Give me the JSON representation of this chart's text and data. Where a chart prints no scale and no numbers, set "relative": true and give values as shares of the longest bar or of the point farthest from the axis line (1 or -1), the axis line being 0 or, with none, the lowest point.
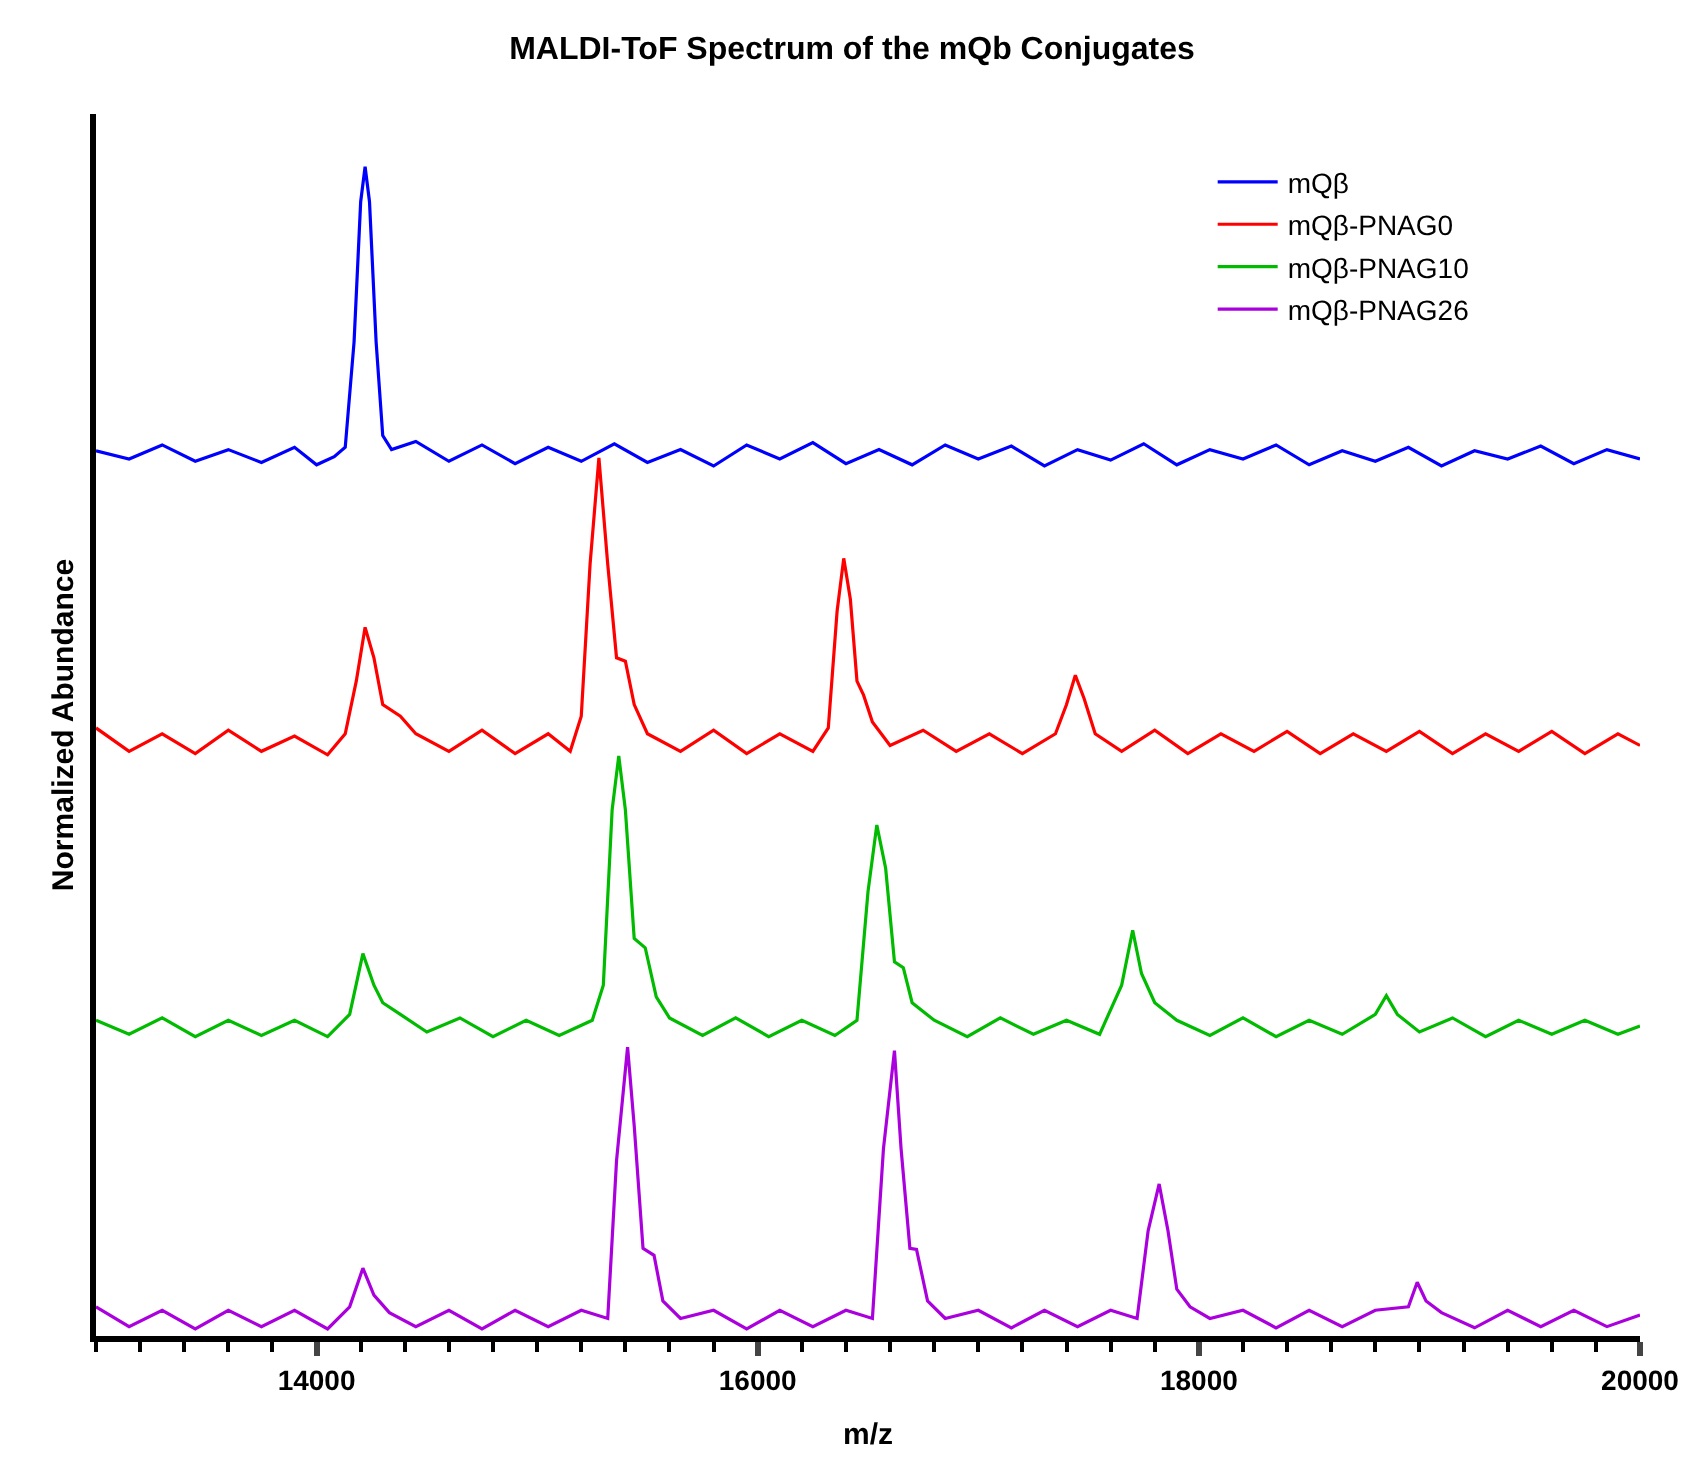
{
  "chart_data": {
    "type": "line",
    "title": "MALDI-ToF Spectrum of the mQb Conjugates",
    "xlabel": "m/z",
    "ylabel": "Normalized Abundance",
    "relative": true,
    "xlim": [
      13000,
      20000
    ],
    "xticks": [
      14000,
      16000,
      18000,
      20000
    ],
    "legend": "top right",
    "marker": "none",
    "line_style": "solid",
    "series": [
      {
        "name": "mQβ",
        "color": "#0000ff",
        "x": [
          13000,
          13150,
          13300,
          13450,
          13600,
          13750,
          13900,
          14000,
          14080,
          14130,
          14170,
          14200,
          14220,
          14240,
          14270,
          14300,
          14340,
          14450,
          14600,
          14750,
          14900,
          15050,
          15200,
          15350,
          15500,
          15650,
          15800,
          15950,
          16100,
          16250,
          16400,
          16550,
          16700,
          16850,
          17000,
          17150,
          17300,
          17450,
          17600,
          17750,
          17900,
          18050,
          18200,
          18350,
          18500,
          18650,
          18800,
          18950,
          19100,
          19250,
          19400,
          19550,
          19700,
          19850,
          20000
        ],
        "values": [
          0.757,
          0.75,
          0.762,
          0.748,
          0.758,
          0.747,
          0.76,
          0.745,
          0.752,
          0.76,
          0.85,
          0.97,
          1.0,
          0.97,
          0.85,
          0.77,
          0.758,
          0.765,
          0.748,
          0.762,
          0.746,
          0.76,
          0.748,
          0.763,
          0.747,
          0.758,
          0.744,
          0.762,
          0.75,
          0.764,
          0.746,
          0.758,
          0.745,
          0.762,
          0.75,
          0.761,
          0.744,
          0.758,
          0.749,
          0.763,
          0.745,
          0.758,
          0.75,
          0.762,
          0.745,
          0.757,
          0.748,
          0.76,
          0.744,
          0.757,
          0.75,
          0.761,
          0.746,
          0.758,
          0.75
        ]
      },
      {
        "name": "mQβ-PNAG0",
        "color": "#ff0000",
        "x": [
          13000,
          13150,
          13300,
          13450,
          13600,
          13750,
          13900,
          14050,
          14130,
          14180,
          14220,
          14260,
          14300,
          14380,
          14450,
          14600,
          14750,
          14900,
          15050,
          15150,
          15200,
          15240,
          15280,
          15320,
          15360,
          15400,
          15440,
          15500,
          15650,
          15800,
          15950,
          16100,
          16250,
          16320,
          16360,
          16390,
          16420,
          16450,
          16480,
          16520,
          16600,
          16750,
          16900,
          17050,
          17200,
          17350,
          17400,
          17440,
          17480,
          17530,
          17650,
          17800,
          17950,
          18100,
          18250,
          18400,
          18550,
          18700,
          18850,
          19000,
          19150,
          19300,
          19450,
          19600,
          19750,
          19900,
          20000
        ],
        "values": [
          0.52,
          0.5,
          0.515,
          0.498,
          0.518,
          0.5,
          0.513,
          0.497,
          0.515,
          0.56,
          0.606,
          0.58,
          0.54,
          0.53,
          0.515,
          0.5,
          0.518,
          0.498,
          0.515,
          0.5,
          0.53,
          0.66,
          0.751,
          0.66,
          0.58,
          0.577,
          0.54,
          0.515,
          0.5,
          0.518,
          0.498,
          0.515,
          0.5,
          0.52,
          0.62,
          0.665,
          0.63,
          0.56,
          0.548,
          0.525,
          0.505,
          0.518,
          0.5,
          0.515,
          0.498,
          0.515,
          0.54,
          0.565,
          0.545,
          0.515,
          0.5,
          0.518,
          0.498,
          0.515,
          0.5,
          0.517,
          0.498,
          0.515,
          0.5,
          0.517,
          0.498,
          0.515,
          0.5,
          0.517,
          0.498,
          0.515,
          0.505
        ]
      },
      {
        "name": "mQβ-PNAG10",
        "color": "#00bb00",
        "x": [
          13000,
          13150,
          13300,
          13450,
          13600,
          13750,
          13900,
          14050,
          14150,
          14210,
          14260,
          14300,
          14380,
          14500,
          14650,
          14800,
          14950,
          15100,
          15250,
          15300,
          15340,
          15370,
          15400,
          15440,
          15490,
          15540,
          15600,
          15750,
          15900,
          16050,
          16200,
          16350,
          16450,
          16500,
          16540,
          16580,
          16620,
          16660,
          16700,
          16800,
          16950,
          17100,
          17250,
          17400,
          17550,
          17650,
          17700,
          17740,
          17800,
          17900,
          18050,
          18200,
          18350,
          18500,
          18650,
          18800,
          18850,
          18900,
          19000,
          19150,
          19300,
          19450,
          19600,
          19750,
          19900,
          20000
        ],
        "values": [
          0.27,
          0.258,
          0.272,
          0.256,
          0.27,
          0.257,
          0.27,
          0.256,
          0.275,
          0.327,
          0.3,
          0.285,
          0.275,
          0.26,
          0.272,
          0.256,
          0.27,
          0.257,
          0.27,
          0.3,
          0.45,
          0.496,
          0.45,
          0.34,
          0.332,
          0.29,
          0.272,
          0.257,
          0.272,
          0.256,
          0.27,
          0.257,
          0.27,
          0.38,
          0.437,
          0.4,
          0.32,
          0.315,
          0.285,
          0.27,
          0.256,
          0.272,
          0.258,
          0.27,
          0.258,
          0.3,
          0.347,
          0.31,
          0.285,
          0.27,
          0.257,
          0.272,
          0.256,
          0.27,
          0.258,
          0.275,
          0.291,
          0.275,
          0.26,
          0.272,
          0.256,
          0.27,
          0.258,
          0.27,
          0.258,
          0.265
        ]
      },
      {
        "name": "mQβ-PNAG26",
        "color": "#aa00dd",
        "x": [
          13000,
          13150,
          13300,
          13450,
          13600,
          13750,
          13900,
          14050,
          14150,
          14210,
          14260,
          14330,
          14450,
          14600,
          14750,
          14900,
          15050,
          15200,
          15320,
          15360,
          15410,
          15440,
          15480,
          15530,
          15570,
          15650,
          15800,
          15950,
          16100,
          16250,
          16400,
          16520,
          16570,
          16620,
          16650,
          16690,
          16720,
          16770,
          16850,
          17000,
          17150,
          17300,
          17450,
          17600,
          17720,
          17770,
          17820,
          17860,
          17900,
          17960,
          18050,
          18200,
          18350,
          18500,
          18650,
          18800,
          18950,
          18990,
          19030,
          19100,
          19250,
          19400,
          19550,
          19700,
          19850,
          20000
        ],
        "values": [
          0.025,
          0.008,
          0.022,
          0.006,
          0.022,
          0.008,
          0.022,
          0.006,
          0.025,
          0.058,
          0.035,
          0.02,
          0.008,
          0.022,
          0.006,
          0.022,
          0.008,
          0.022,
          0.015,
          0.15,
          0.247,
          0.18,
          0.075,
          0.069,
          0.03,
          0.015,
          0.022,
          0.006,
          0.022,
          0.008,
          0.022,
          0.015,
          0.16,
          0.244,
          0.16,
          0.075,
          0.074,
          0.03,
          0.015,
          0.022,
          0.007,
          0.022,
          0.008,
          0.022,
          0.015,
          0.09,
          0.13,
          0.09,
          0.04,
          0.025,
          0.015,
          0.022,
          0.007,
          0.022,
          0.008,
          0.022,
          0.025,
          0.046,
          0.03,
          0.02,
          0.007,
          0.022,
          0.008,
          0.022,
          0.008,
          0.018
        ]
      }
    ]
  }
}
